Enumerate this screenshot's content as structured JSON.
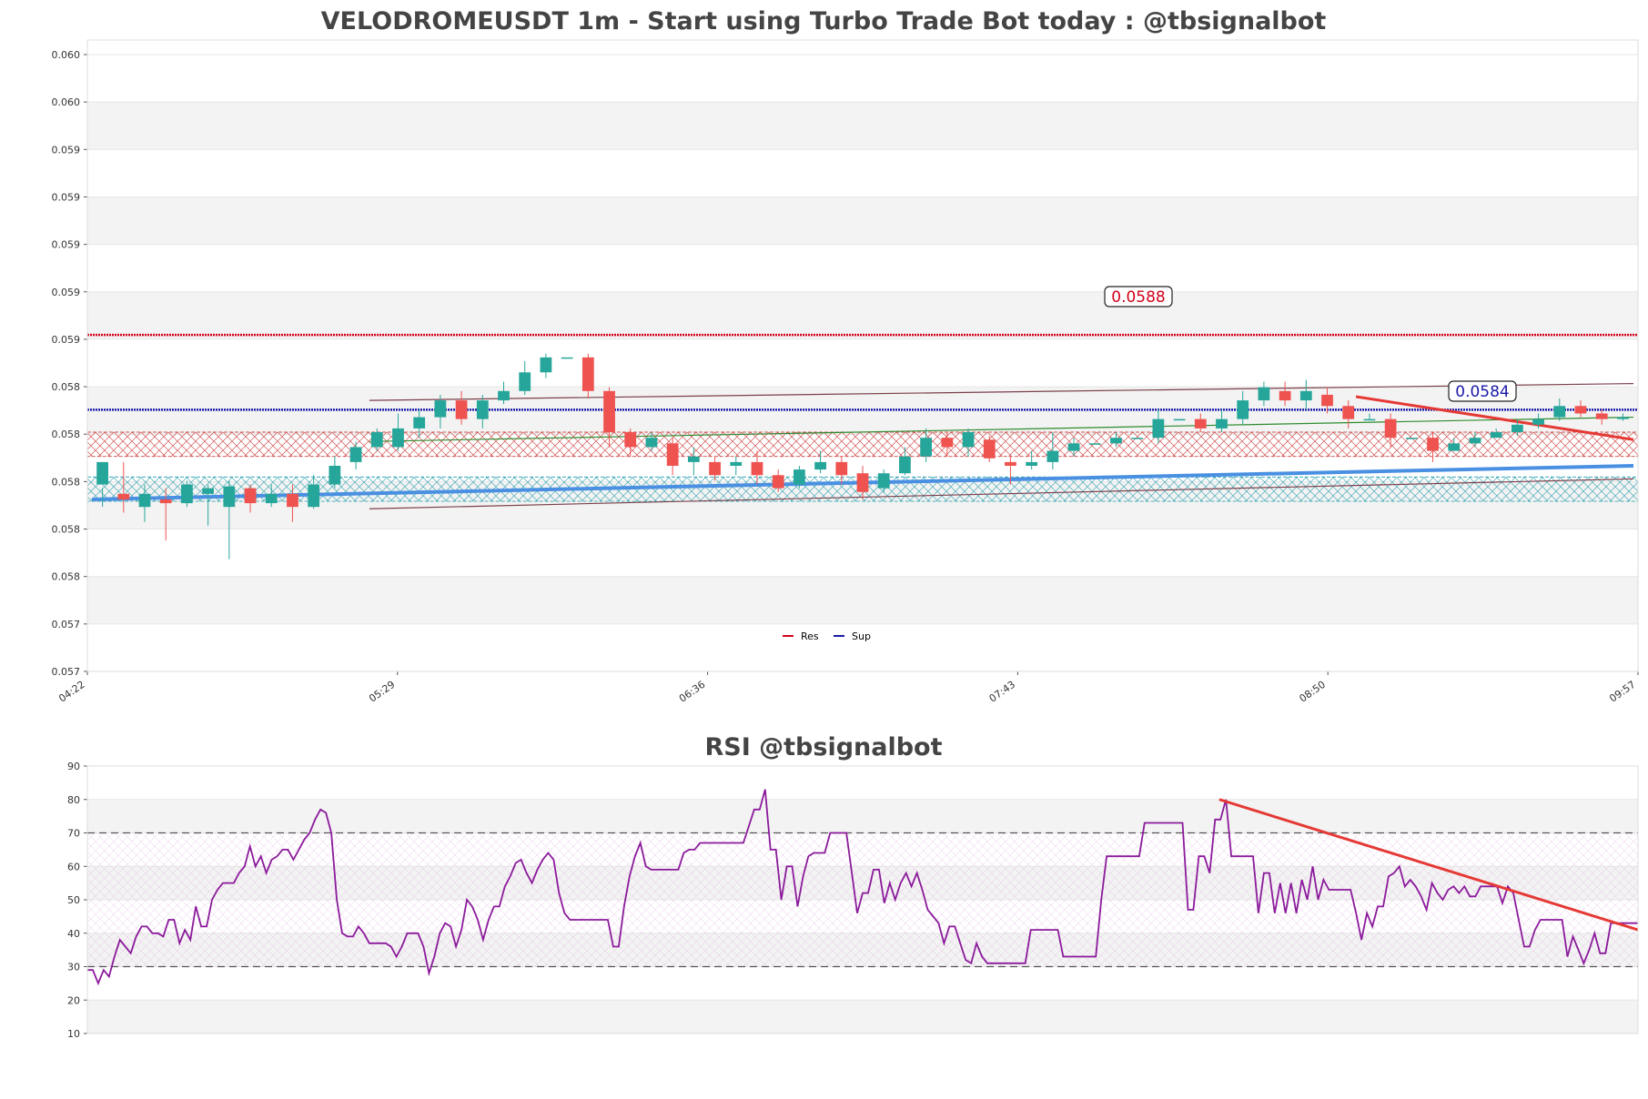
{
  "colors": {
    "up": "#26a69a",
    "down": "#ef5350",
    "resistance": "#d0021b",
    "support": "#1a1aa6",
    "trend_support": "#4a90e2",
    "trend_resistance": "#e53935",
    "channel": "#7b3f4a",
    "green_line": "#2e8b2e",
    "rsi_line": "#8b1a9b",
    "res_zone": "#c62828",
    "sup_zone": "#1e9aa8",
    "band": "#f3f3f3"
  },
  "chart_data": [
    {
      "type": "candlestick",
      "title": "VELODROMEUSDT 1m - Start using Turbo Trade Bot today : @tbsignalbot",
      "ylim": [
        0.057,
        0.0603
      ],
      "y_tick_labels": [
        "0.060",
        "0.060",
        "0.059",
        "0.059",
        "0.059",
        "0.059",
        "0.059",
        "0.058",
        "0.058",
        "0.058",
        "0.058",
        "0.058",
        "0.057",
        "0.057"
      ],
      "x_tick_labels": [
        "04:22",
        "05:29",
        "06:36",
        "07:43",
        "08:50",
        "09:57"
      ],
      "legend": [
        {
          "label": "Res",
          "color": "#d0021b"
        },
        {
          "label": "Sup",
          "color": "#1a1aa6"
        }
      ],
      "legend_position": "bottom-center",
      "resistance_level": 0.0588,
      "resistance_label": "0.0588",
      "support_level": 0.0584,
      "support_label": "0.0584",
      "resistance_zone": [
        0.05815,
        0.05828
      ],
      "support_zone": [
        0.05791,
        0.05804
      ],
      "candles": [
        [
          0.058,
          0.05812,
          0.05798,
          0.05788
        ],
        [
          0.05795,
          0.05792,
          0.05812,
          0.05785
        ],
        [
          0.05788,
          0.05795,
          0.058,
          0.0578
        ],
        [
          0.05792,
          0.0579,
          0.05798,
          0.0577
        ],
        [
          0.0579,
          0.058,
          0.05802,
          0.05788
        ],
        [
          0.05795,
          0.05798,
          0.058,
          0.05778
        ],
        [
          0.05788,
          0.05799,
          0.05802,
          0.0576
        ],
        [
          0.05798,
          0.0579,
          0.058,
          0.05785
        ],
        [
          0.0579,
          0.05795,
          0.058,
          0.05788
        ],
        [
          0.05795,
          0.05788,
          0.058,
          0.0578
        ],
        [
          0.05788,
          0.058,
          0.05805,
          0.05787
        ],
        [
          0.058,
          0.0581,
          0.05815,
          0.05798
        ],
        [
          0.05812,
          0.0582,
          0.05823,
          0.05808
        ],
        [
          0.0582,
          0.05828,
          0.0583,
          0.05818
        ],
        [
          0.0582,
          0.0583,
          0.05838,
          0.05818
        ],
        [
          0.0583,
          0.05836,
          0.0584,
          0.05825
        ],
        [
          0.05836,
          0.05845,
          0.05848,
          0.0583
        ],
        [
          0.05845,
          0.05835,
          0.0585,
          0.05832
        ],
        [
          0.05835,
          0.05845,
          0.05848,
          0.0583
        ],
        [
          0.05845,
          0.0585,
          0.05855,
          0.05843
        ],
        [
          0.0585,
          0.0586,
          0.05866,
          0.05848
        ],
        [
          0.0586,
          0.05868,
          0.0587,
          0.05857
        ],
        [
          0.05868,
          0.05868,
          0.05868,
          0.05868
        ],
        [
          0.05868,
          0.0585,
          0.0587,
          0.05846
        ],
        [
          0.0585,
          0.05828,
          0.05852,
          0.0582
        ],
        [
          0.05828,
          0.0582,
          0.0583,
          0.05815
        ],
        [
          0.0582,
          0.05825,
          0.05828,
          0.05818
        ],
        [
          0.05822,
          0.0581,
          0.05825,
          0.05805
        ],
        [
          0.05812,
          0.05815,
          0.0582,
          0.05805
        ],
        [
          0.05812,
          0.05805,
          0.05815,
          0.05802
        ],
        [
          0.0581,
          0.05812,
          0.05815,
          0.05805
        ],
        [
          0.05812,
          0.05805,
          0.05818,
          0.058
        ],
        [
          0.05805,
          0.05798,
          0.05808,
          0.05796
        ],
        [
          0.058,
          0.05808,
          0.0581,
          0.05798
        ],
        [
          0.05808,
          0.05812,
          0.05818,
          0.05806
        ],
        [
          0.05812,
          0.05805,
          0.05815,
          0.058
        ],
        [
          0.05806,
          0.05796,
          0.0581,
          0.05792
        ],
        [
          0.05798,
          0.05806,
          0.05808,
          0.05796
        ],
        [
          0.05806,
          0.05815,
          0.0582,
          0.05805
        ],
        [
          0.05815,
          0.05825,
          0.0583,
          0.05812
        ],
        [
          0.05825,
          0.0582,
          0.05828,
          0.05815
        ],
        [
          0.0582,
          0.05828,
          0.0583,
          0.05815
        ],
        [
          0.05824,
          0.05814,
          0.05826,
          0.05812
        ],
        [
          0.05812,
          0.0581,
          0.05815,
          0.058
        ],
        [
          0.0581,
          0.05812,
          0.05818,
          0.05808
        ],
        [
          0.05812,
          0.05818,
          0.05828,
          0.05808
        ],
        [
          0.05818,
          0.05822,
          0.05825,
          0.05815
        ],
        [
          0.05822,
          0.05822,
          0.05822,
          0.05822
        ],
        [
          0.05822,
          0.05825,
          0.05828,
          0.0582
        ],
        [
          0.05825,
          0.05825,
          0.05825,
          0.05825
        ],
        [
          0.05825,
          0.05835,
          0.0584,
          0.05822
        ],
        [
          0.05835,
          0.05835,
          0.05835,
          0.05835
        ],
        [
          0.05835,
          0.0583,
          0.05838,
          0.05828
        ],
        [
          0.0583,
          0.05835,
          0.0584,
          0.05828
        ],
        [
          0.05835,
          0.05845,
          0.0585,
          0.05832
        ],
        [
          0.05845,
          0.05852,
          0.05855,
          0.05842
        ],
        [
          0.0585,
          0.05845,
          0.05855,
          0.05842
        ],
        [
          0.05845,
          0.0585,
          0.05856,
          0.0584
        ],
        [
          0.05848,
          0.05842,
          0.05852,
          0.05838
        ],
        [
          0.05842,
          0.05835,
          0.05845,
          0.0583
        ],
        [
          0.05835,
          0.05835,
          0.05838,
          0.05835
        ],
        [
          0.05835,
          0.05825,
          0.05838,
          0.0582
        ],
        [
          0.05825,
          0.05825,
          0.05825,
          0.05825
        ],
        [
          0.05825,
          0.05818,
          0.05828,
          0.05812
        ],
        [
          0.05818,
          0.05822,
          0.05825,
          0.05818
        ],
        [
          0.05822,
          0.05825,
          0.05828,
          0.0582
        ],
        [
          0.05825,
          0.05828,
          0.0583,
          0.05825
        ],
        [
          0.05828,
          0.05832,
          0.05835,
          0.05826
        ],
        [
          0.05832,
          0.05835,
          0.05838,
          0.0583
        ],
        [
          0.05836,
          0.05842,
          0.05846,
          0.05834
        ],
        [
          0.05842,
          0.05838,
          0.05845,
          0.05836
        ],
        [
          0.05838,
          0.05835,
          0.0584,
          0.05832
        ],
        [
          0.05835,
          0.05836,
          0.05838,
          0.05834
        ]
      ],
      "trend_support": {
        "start": [
          0.0,
          0.05792
        ],
        "end": [
          1.0,
          0.0581
        ]
      },
      "trend_resistance": {
        "start": [
          0.82,
          0.05847
        ],
        "end": [
          1.0,
          0.05824
        ]
      },
      "channel_top": {
        "start": [
          0.18,
          0.05845
        ],
        "end": [
          1.0,
          0.05854
        ]
      },
      "channel_bottom": {
        "start": [
          0.18,
          0.05787
        ],
        "end": [
          1.0,
          0.05803
        ]
      },
      "green_line": {
        "start": [
          0.18,
          0.05823
        ],
        "end": [
          1.0,
          0.05836
        ]
      }
    },
    {
      "type": "line",
      "title": "RSI @tbsignalbot",
      "ylim": [
        10,
        90
      ],
      "y_ticks": [
        10,
        20,
        30,
        40,
        50,
        60,
        70,
        80,
        90
      ],
      "overbought": 70,
      "oversold": 30,
      "series": [
        {
          "values": [
            29,
            29,
            25,
            29,
            27,
            33,
            38,
            36,
            34,
            39,
            42,
            42,
            40,
            40,
            39,
            44,
            44,
            37,
            41,
            38,
            48,
            42,
            42,
            50,
            53,
            55,
            55,
            55,
            58,
            60,
            66,
            60,
            63,
            58,
            62,
            63,
            65,
            65,
            62,
            65,
            68,
            70,
            74,
            77,
            76,
            70,
            50,
            40,
            39,
            39,
            42,
            40,
            37,
            37,
            37,
            37,
            36,
            33,
            36,
            40,
            40,
            40,
            36,
            28,
            33,
            40,
            43,
            42,
            36,
            41,
            50,
            48,
            44,
            38,
            44,
            48,
            48,
            54,
            57,
            61,
            62,
            58,
            55,
            59,
            62,
            64,
            62,
            52,
            46,
            44,
            44,
            44,
            44,
            44,
            44,
            44,
            44,
            36,
            36,
            48,
            57,
            63,
            67,
            60,
            59,
            59,
            59,
            59,
            59,
            59,
            64,
            65,
            65,
            67,
            67,
            67,
            67,
            67,
            67,
            67,
            67,
            67,
            72,
            77,
            77,
            83,
            65,
            65,
            50,
            60,
            60,
            48,
            57,
            63,
            64,
            64,
            64,
            70,
            70,
            70,
            70,
            58,
            46,
            52,
            52,
            59,
            59,
            49,
            55,
            50,
            55,
            58,
            54,
            58,
            53,
            47,
            45,
            43,
            37,
            42,
            42,
            37,
            32,
            31,
            37,
            33,
            31,
            31,
            31,
            31,
            31,
            31,
            31,
            31,
            41,
            41,
            41,
            41,
            41,
            41,
            33,
            33,
            33,
            33,
            33,
            33,
            33,
            50,
            63,
            63,
            63,
            63,
            63,
            63,
            63,
            73,
            73,
            73,
            73,
            73,
            73,
            73,
            73,
            47,
            47,
            63,
            63,
            58,
            74,
            74,
            80,
            63,
            63,
            63,
            63,
            63,
            46,
            58,
            58,
            46,
            55,
            46,
            55,
            46,
            56,
            50,
            60,
            50,
            56,
            53,
            53,
            53,
            53,
            53,
            46,
            38,
            46,
            42,
            48,
            48,
            57,
            58,
            60,
            54,
            56,
            54,
            51,
            47,
            55,
            52,
            50,
            53,
            54,
            52,
            54,
            51,
            51,
            54,
            54,
            54,
            54,
            49,
            54,
            52,
            44,
            36,
            36,
            41,
            44,
            44,
            44,
            44,
            44,
            33,
            39,
            35,
            31,
            35,
            40,
            34,
            34,
            43,
            43,
            43,
            43,
            43,
            43
          ]
        }
      ],
      "trend_resistance": {
        "start": [
          0.73,
          80
        ],
        "end": [
          1.0,
          41
        ]
      }
    }
  ]
}
